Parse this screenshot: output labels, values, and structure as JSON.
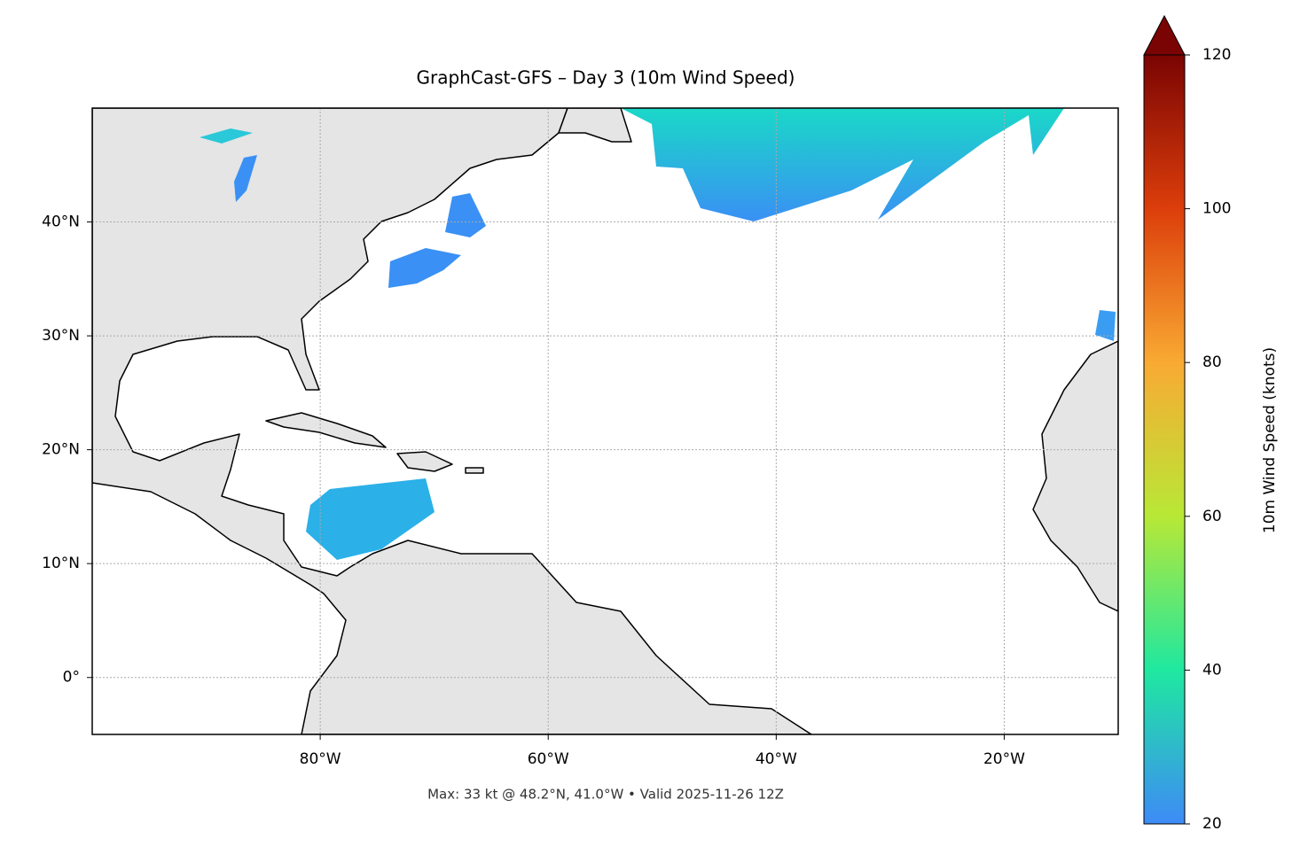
{
  "title": "GraphCast-GFS – Day 3 (10m Wind Speed)",
  "footnote": "Max: 33 kt @ 48.2°N, 41.0°W • Valid 2025-11-26 12Z",
  "map": {
    "xlim": [
      -100,
      -10
    ],
    "ylim": [
      -5,
      50
    ],
    "grid": true,
    "xticks": [
      {
        "value": -80,
        "label": "80°W"
      },
      {
        "value": -60,
        "label": "60°W"
      },
      {
        "value": -40,
        "label": "40°W"
      },
      {
        "value": -20,
        "label": "20°W"
      }
    ],
    "yticks": [
      {
        "value": 0,
        "label": "0°"
      },
      {
        "value": 10,
        "label": "10°N"
      },
      {
        "value": 20,
        "label": "20°N"
      },
      {
        "value": 30,
        "label": "30°N"
      },
      {
        "value": 40,
        "label": "40°N"
      }
    ]
  },
  "colorbar": {
    "label": "10m Wind Speed (knots)",
    "lim": [
      20,
      120
    ],
    "ticks": [
      20,
      40,
      60,
      80,
      100,
      120
    ]
  }
}
